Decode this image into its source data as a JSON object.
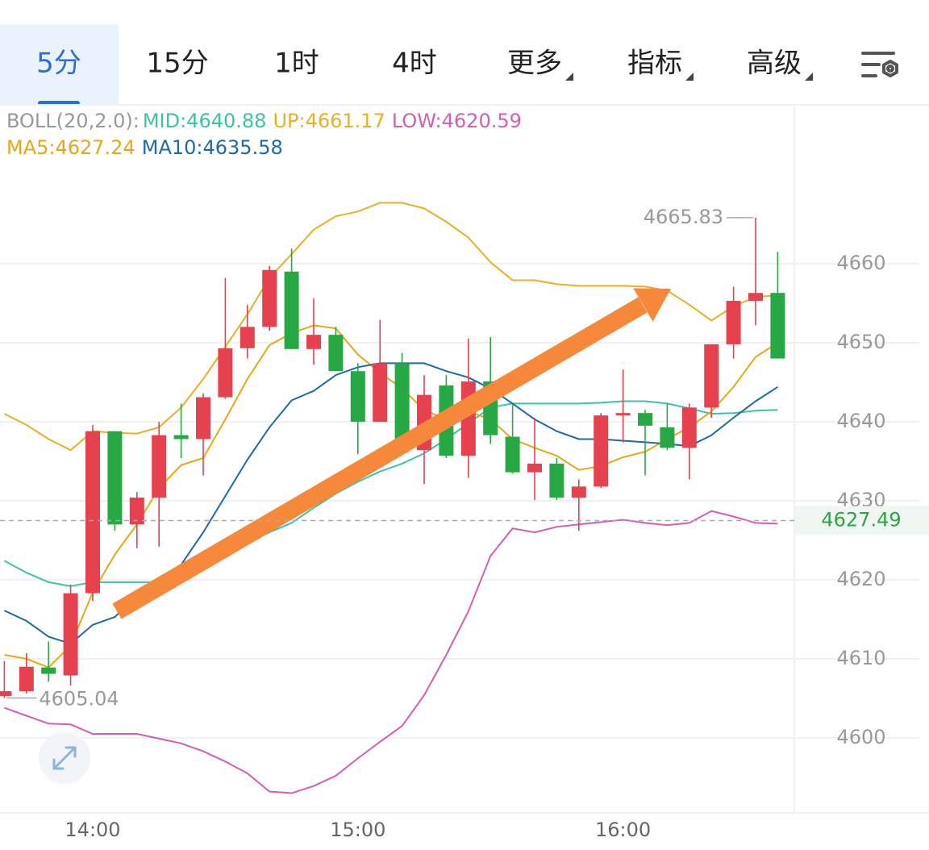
{
  "tabs": [
    {
      "label": "5分",
      "dropdown": false
    },
    {
      "label": "15分",
      "dropdown": false
    },
    {
      "label": "1时",
      "dropdown": false
    },
    {
      "label": "4时",
      "dropdown": false
    },
    {
      "label": "更多",
      "dropdown": true
    },
    {
      "label": "指标",
      "dropdown": true
    },
    {
      "label": "高级",
      "dropdown": true
    }
  ],
  "selected_tab": 0,
  "chart_data": {
    "type": "candlestick",
    "indicator_label": "BOLL(20,2.0):",
    "categories": [
      null,
      null,
      null,
      null,
      "14:00",
      null,
      null,
      null,
      null,
      null,
      null,
      null,
      null,
      null,
      null,
      null,
      "15:00",
      null,
      null,
      null,
      null,
      null,
      null,
      null,
      null,
      null,
      null,
      null,
      "16:00",
      null,
      null,
      null,
      null,
      null,
      null,
      null
    ],
    "open": [
      4605.3,
      4605.9,
      4608.9,
      4607.9,
      4618.3,
      4638.8,
      4627.0,
      4630.4,
      4638.3,
      4637.8,
      4643.1,
      4649.3,
      4652.0,
      4659.0,
      4649.2,
      4651.0,
      4646.4,
      4640.0,
      4647.4,
      4636.4,
      4644.6,
      4635.7,
      4645.1,
      4638.1,
      4633.6,
      4634.7,
      4630.4,
      4631.8,
      4640.8,
      4641.1,
      4639.3,
      4636.7,
      4641.8,
      4649.8,
      4655.3,
      4656.3
    ],
    "high": [
      4609.7,
      4610.7,
      4612.2,
      4619.4,
      4639.6,
      4638.8,
      4631.1,
      4640.0,
      4642.3,
      4643.6,
      4658.2,
      4654.8,
      4659.7,
      4661.9,
      4655.6,
      4652.0,
      4647.4,
      4652.9,
      4648.7,
      4645.9,
      4645.9,
      4650.5,
      4650.7,
      4642.3,
      4640.5,
      4635.4,
      4632.7,
      4641.1,
      4646.6,
      4641.5,
      4642.3,
      4642.3,
      4649.8,
      4657.1,
      4665.83,
      4661.5
    ],
    "low": [
      4605.04,
      4605.6,
      4607.1,
      4606.6,
      4617.3,
      4626.2,
      4624.0,
      4624.2,
      4635.4,
      4633.2,
      4642.9,
      4648.0,
      4651.5,
      4649.2,
      4647.2,
      4646.4,
      4635.9,
      4640.0,
      4637.8,
      4632.1,
      4635.4,
      4632.9,
      4637.2,
      4633.4,
      4630.1,
      4630.1,
      4626.2,
      4631.6,
      4637.4,
      4633.2,
      4636.4,
      4632.7,
      4640.5,
      4648.0,
      4652.2,
      4648.0
    ],
    "close": [
      4605.9,
      4609.0,
      4608.1,
      4618.3,
      4638.8,
      4627.0,
      4630.4,
      4638.3,
      4637.8,
      4643.1,
      4649.3,
      4652.0,
      4659.2,
      4649.2,
      4651.0,
      4646.4,
      4640.0,
      4647.4,
      4637.8,
      4643.4,
      4635.7,
      4645.1,
      4638.3,
      4633.6,
      4634.7,
      4630.4,
      4631.8,
      4640.8,
      4641.1,
      4639.5,
      4636.7,
      4641.8,
      4649.8,
      4655.3,
      4656.3,
      4648.0
    ],
    "up_color": "#e5414f",
    "down_color": "#27a844",
    "series": [
      {
        "name": "MID:4640.88",
        "color": "#3cc3a5",
        "values": [
          4622.4,
          4620.9,
          4619.7,
          4619.2,
          4619.7,
          4619.7,
          4619.7,
          4619.7,
          4620.7,
          4622.1,
          4623.5,
          4624.8,
          4626.0,
          4627.2,
          4629.1,
          4630.9,
          4632.4,
          4633.7,
          4634.7,
          4636.0,
          4637.8,
          4639.8,
          4641.8,
          4642.3,
          4642.3,
          4642.3,
          4642.3,
          4642.4,
          4642.6,
          4642.6,
          4642.3,
          4641.7,
          4641.0,
          4641.1,
          4641.4,
          4641.5
        ]
      },
      {
        "name": "UP:4661.17",
        "color": "#e9b023",
        "values": [
          4641.0,
          4639.6,
          4637.8,
          4636.4,
          4638.8,
          4638.6,
          4638.5,
          4639.3,
          4641.8,
          4645.4,
          4649.5,
          4653.6,
          4658.2,
          4661.2,
          4664.3,
          4666.0,
          4666.6,
          4667.7,
          4667.7,
          4667.0,
          4665.3,
          4663.3,
          4660.2,
          4657.9,
          4657.9,
          4657.4,
          4657.2,
          4657.2,
          4657.2,
          4657.1,
          4656.6,
          4654.8,
          4652.8,
          4654.6,
          4655.8,
          4656.0
        ]
      },
      {
        "name": "LOW:4620.59",
        "color": "#d65db1",
        "values": [
          4603.8,
          4602.8,
          4601.8,
          4601.7,
          4600.5,
          4600.5,
          4600.5,
          4599.9,
          4599.3,
          4598.3,
          4597.0,
          4595.5,
          4593.2,
          4593.0,
          4593.9,
          4595.2,
          4597.4,
          4599.5,
          4601.5,
          4605.4,
          4610.5,
          4616.0,
          4623.0,
          4626.5,
          4626.0,
          4626.7,
          4627.0,
          4627.3,
          4627.6,
          4627.2,
          4626.9,
          4627.2,
          4628.7,
          4628.0,
          4627.2,
          4627.1
        ]
      },
      {
        "name": "MA5:4627.24",
        "color": "#e6a817",
        "values": [
          4610.5,
          4610.0,
          4608.9,
          4611.7,
          4618.4,
          4623.2,
          4627.0,
          4631.6,
          4634.5,
          4635.4,
          4640.3,
          4645.4,
          4649.7,
          4651.2,
          4652.2,
          4651.8,
          4648.5,
          4646.2,
          4644.2,
          4641.5,
          4640.3,
          4641.3,
          4640.3,
          4637.8,
          4636.7,
          4635.7,
          4633.9,
          4634.4,
          4635.5,
          4636.2,
          4637.8,
          4639.3,
          4641.3,
          4644.4,
          4648.2,
          4650.0
        ]
      },
      {
        "name": "MA10:4635.58",
        "color": "#1f6aa5",
        "values": [
          4616.1,
          4614.8,
          4612.8,
          4611.9,
          4614.3,
          4615.3,
          4617.9,
          4619.9,
          4621.9,
          4626.0,
          4630.6,
          4635.2,
          4639.3,
          4642.7,
          4643.9,
          4645.9,
          4646.9,
          4647.4,
          4647.4,
          4647.4,
          4646.4,
          4645.6,
          4644.2,
          4642.3,
          4640.3,
          4638.8,
          4637.8,
          4637.8,
          4637.6,
          4637.4,
          4637.2,
          4636.9,
          4638.3,
          4640.5,
          4642.6,
          4644.4
        ]
      }
    ],
    "last_price": 4627.49,
    "ylim": [
      4590.5,
      4680.1
    ],
    "yticks": [
      4600,
      4610,
      4620,
      4630,
      4640,
      4650,
      4660
    ],
    "grid": true
  }
}
